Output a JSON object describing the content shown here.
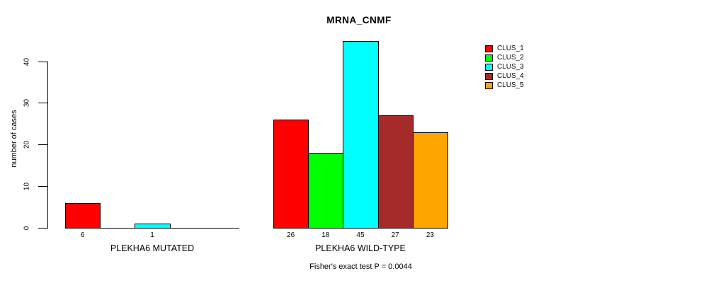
{
  "title": "MRNA_CNMF",
  "y_axis": {
    "label": "number of cases",
    "ticks": [
      0,
      10,
      20,
      30,
      40
    ]
  },
  "footer": "Fisher's exact test P = 0.0044",
  "legend": [
    {
      "label": "CLUS_1",
      "color": "#FF0000"
    },
    {
      "label": "CLUS_2",
      "color": "#00FF00"
    },
    {
      "label": "CLUS_3",
      "color": "#00FFFF"
    },
    {
      "label": "CLUS_4",
      "color": "#A52A2A"
    },
    {
      "label": "CLUS_5",
      "color": "#FFA500"
    }
  ],
  "chart_data": {
    "type": "bar",
    "title": "MRNA_CNMF",
    "ylabel": "number of cases",
    "ylim": [
      0,
      45
    ],
    "yticks": [
      0,
      10,
      20,
      30,
      40
    ],
    "grid": false,
    "legend_position": "top-right",
    "series": [
      "CLUS_1",
      "CLUS_2",
      "CLUS_3",
      "CLUS_4",
      "CLUS_5"
    ],
    "colors": [
      "#FF0000",
      "#00FF00",
      "#00FFFF",
      "#A52A2A",
      "#FFA500"
    ],
    "groups": [
      {
        "label": "PLEKHA6 MUTATED",
        "values": [
          6,
          0,
          1,
          0,
          0
        ]
      },
      {
        "label": "PLEKHA6 WILD-TYPE",
        "values": [
          26,
          18,
          45,
          27,
          23
        ]
      }
    ],
    "value_label_rule": "shown under bar only when value > 0",
    "annotation": "Fisher's exact test P = 0.0044"
  }
}
